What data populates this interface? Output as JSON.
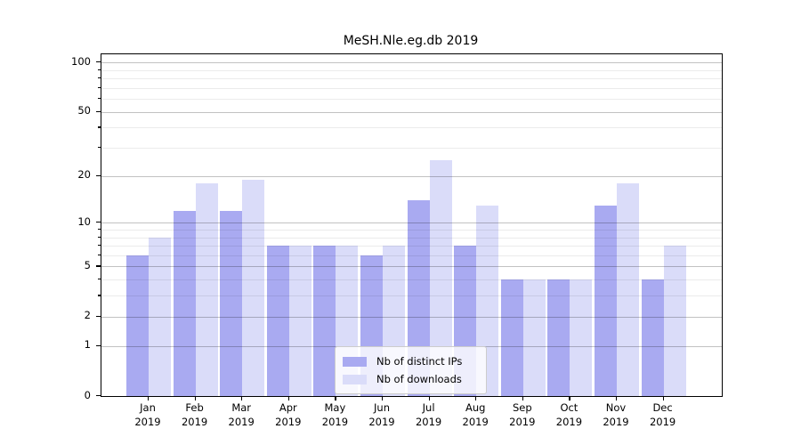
{
  "chart_data": {
    "type": "bar",
    "title": "MeSH.Nle.eg.db 2019",
    "year": "2019",
    "months": [
      "Jan",
      "Feb",
      "Mar",
      "Apr",
      "May",
      "Jun",
      "Jul",
      "Aug",
      "Sep",
      "Oct",
      "Nov",
      "Dec"
    ],
    "categories": [
      "Jan 2019",
      "Feb 2019",
      "Mar 2019",
      "Apr 2019",
      "May 2019",
      "Jun 2019",
      "Jul 2019",
      "Aug 2019",
      "Sep 2019",
      "Oct 2019",
      "Nov 2019",
      "Dec 2019"
    ],
    "series": [
      {
        "key": "distinct-ips",
        "name": "Nb of distinct IPs",
        "color": "#a9aaf1",
        "values": [
          6,
          12,
          12,
          7,
          7,
          6,
          14,
          7,
          4,
          4,
          13,
          4
        ]
      },
      {
        "key": "downloads",
        "name": "Nb of downloads",
        "color": "#dadcf9",
        "values": [
          8,
          18,
          19,
          7,
          7,
          7,
          25,
          13,
          4,
          4,
          18,
          7
        ]
      }
    ],
    "xlabel": "",
    "ylabel": "",
    "y_scale": "log1p",
    "ylim": [
      0,
      112
    ],
    "y_tick_labels": [
      "0",
      "1",
      "2",
      "5",
      "10",
      "20",
      "50",
      "100"
    ],
    "y_ticks": [
      0,
      1,
      2,
      5,
      10,
      20,
      50,
      100
    ],
    "y_minor_ticks": [
      3,
      4,
      6,
      7,
      8,
      9,
      30,
      40,
      60,
      70,
      80,
      90
    ],
    "grid": true,
    "legend_position": "bottom-center",
    "colors": {
      "spine": "#000000",
      "grid_major": "rgba(0,0,0,0.24)",
      "grid_minor": "rgba(0,0,0,0.08)",
      "background": "#ffffff"
    }
  }
}
